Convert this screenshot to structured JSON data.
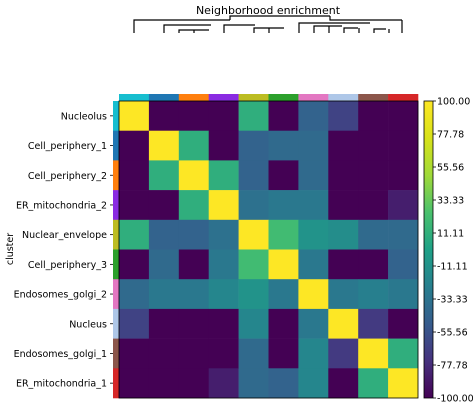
{
  "chart_data": {
    "type": "heatmap",
    "title": "Neighborhood enrichment",
    "ylabel": "cluster",
    "rows": [
      "Nucleolus",
      "Cell_periphery_1",
      "Cell_periphery_2",
      "ER_mitochondria_2",
      "Nuclear_envelope",
      "Cell_periphery_3",
      "Endosomes_golgi_2",
      "Nucleus",
      "Endosomes_golgi_1",
      "ER_mitochondria_1"
    ],
    "values": [
      [
        100,
        -100,
        -100,
        -100,
        10,
        -100,
        -45,
        -65,
        -100,
        -100
      ],
      [
        -100,
        100,
        10,
        -100,
        -45,
        -40,
        -40,
        -100,
        -100,
        -100
      ],
      [
        -100,
        10,
        100,
        10,
        -45,
        -100,
        -40,
        -100,
        -100,
        -100
      ],
      [
        -100,
        -100,
        10,
        100,
        -35,
        -30,
        -30,
        -100,
        -100,
        -85
      ],
      [
        10,
        -45,
        -45,
        -35,
        100,
        20,
        -10,
        -15,
        -40,
        -40
      ],
      [
        -100,
        -40,
        -100,
        -30,
        20,
        100,
        -30,
        -100,
        -100,
        -45
      ],
      [
        -40,
        -30,
        -30,
        -20,
        -10,
        -30,
        100,
        -30,
        -25,
        -30
      ],
      [
        -65,
        -100,
        -100,
        -100,
        -20,
        -100,
        -30,
        100,
        -70,
        -100
      ],
      [
        -100,
        -100,
        -100,
        -100,
        -40,
        -100,
        -20,
        -70,
        100,
        10
      ],
      [
        -100,
        -100,
        -100,
        -85,
        -40,
        -45,
        -20,
        -100,
        10,
        100
      ]
    ],
    "cluster_colors": [
      "#17becf",
      "#1f77b4",
      "#ff7f0e",
      "#8a2be2",
      "#bcbd22",
      "#2ca02c",
      "#e377c2",
      "#aec7e8",
      "#8c564b",
      "#d62728"
    ],
    "colorbar": {
      "colormap": "viridis",
      "range": [
        -100,
        100
      ],
      "ticks": [
        "100.00",
        "77.78",
        "55.56",
        "33.33",
        "11.11",
        "-11.11",
        "-33.33",
        "-55.56",
        "-77.78",
        "-100.00"
      ]
    },
    "dendrogram": "column hierarchical clustering above heatmap"
  }
}
